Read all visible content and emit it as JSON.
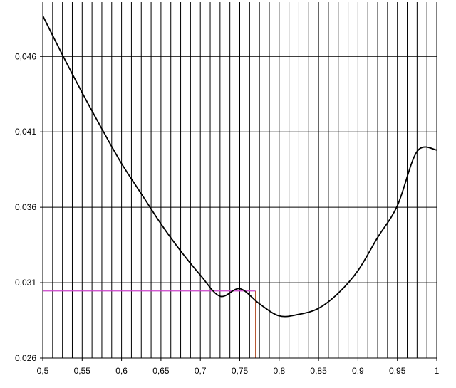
{
  "chart_data": {
    "type": "line",
    "title": "",
    "xlabel": "",
    "ylabel": "",
    "xlim": [
      0.5,
      1.0
    ],
    "ylim": [
      0.026,
      0.0496
    ],
    "x_ticks": [
      0.5,
      0.55,
      0.6,
      0.65,
      0.7,
      0.75,
      0.8,
      0.85,
      0.9,
      0.95,
      1.0
    ],
    "x_tick_labels": [
      "0,5",
      "0,55",
      "0,6",
      "0,65",
      "0,7",
      "0,75",
      "0,8",
      "0,85",
      "0,9",
      "0,95",
      "1"
    ],
    "y_ticks": [
      0.026,
      0.031,
      0.036,
      0.041,
      0.046
    ],
    "y_tick_labels": [
      "0,026",
      "0,031",
      "0,036",
      "0,041",
      "0,046"
    ],
    "x_minor_gridline_step": 0.0125,
    "grid": true,
    "series": [
      {
        "color": "#000000",
        "x": [
          0.5,
          0.525,
          0.55,
          0.575,
          0.6,
          0.625,
          0.65,
          0.675,
          0.7,
          0.725,
          0.75,
          0.775,
          0.8,
          0.825,
          0.85,
          0.875,
          0.9,
          0.925,
          0.95,
          0.975,
          1.0
        ],
        "y": [
          0.0487,
          0.0461,
          0.0436,
          0.0412,
          0.0389,
          0.0369,
          0.0349,
          0.0331,
          0.0315,
          0.0301,
          0.0306,
          0.0296,
          0.0288,
          0.0289,
          0.0293,
          0.0303,
          0.0318,
          0.034,
          0.0361,
          0.0397,
          0.0398
        ]
      }
    ],
    "annotations": [
      {
        "type": "hline",
        "y": 0.03045,
        "x_from": 0.5,
        "x_to": 0.77,
        "color": "#cc44cc"
      },
      {
        "type": "vline",
        "x": 0.77,
        "y_from": 0.026,
        "y_to": 0.03045,
        "color": "#b5542f"
      }
    ]
  }
}
